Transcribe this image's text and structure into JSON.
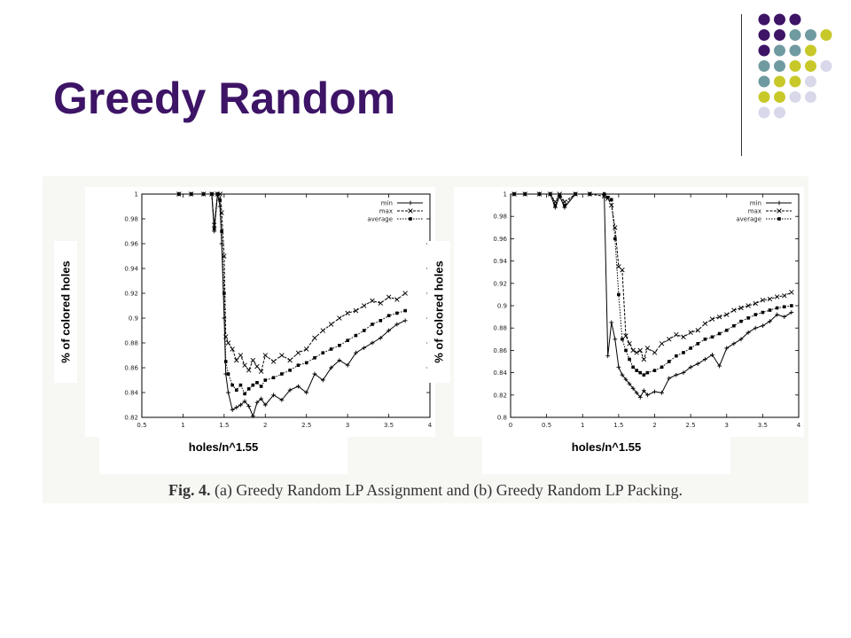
{
  "slide": {
    "title": "Greedy Random",
    "caption_label": "Fig. 4.",
    "caption_text": "(a) Greedy Random LP Assignment and (b) Greedy Random LP Packing."
  },
  "decoration": {
    "dot_colors": [
      "#3d1466",
      "#6f9aa0",
      "#c8c82a",
      "#d8d8ea"
    ],
    "dot_grid": [
      [
        0,
        0,
        0,
        -1
      ],
      [
        0,
        0,
        1,
        1,
        2
      ],
      [
        0,
        1,
        1,
        2
      ],
      [
        1,
        1,
        2,
        2,
        3
      ],
      [
        1,
        2,
        2,
        3
      ],
      [
        2,
        2,
        3,
        3
      ],
      [
        3,
        3
      ]
    ]
  },
  "chart_data": [
    {
      "type": "line",
      "id": "a",
      "ylabel": "% of colored holes",
      "xlabel": "holes/n^1.55",
      "xlim": [
        0.5,
        4
      ],
      "ylim": [
        0.82,
        1
      ],
      "xticks": [
        "0.5",
        "1",
        "1.5",
        "2",
        "2.5",
        "3",
        "3.5",
        "4"
      ],
      "yticks": [
        "0.82",
        "0.84",
        "0.86",
        "0.88",
        "0.9",
        "0.92",
        "0.94",
        "0.96",
        "0.98",
        "1"
      ],
      "legend_position": "top-right",
      "series": [
        {
          "name": "min",
          "marker": "plus",
          "x": [
            0.95,
            1.1,
            1.25,
            1.35,
            1.38,
            1.42,
            1.45,
            1.47,
            1.5,
            1.52,
            1.55,
            1.6,
            1.65,
            1.7,
            1.75,
            1.8,
            1.85,
            1.9,
            1.95,
            2.0,
            2.1,
            2.2,
            2.3,
            2.4,
            2.5,
            2.6,
            2.7,
            2.8,
            2.9,
            3.0,
            3.1,
            3.2,
            3.3,
            3.4,
            3.5,
            3.6,
            3.7
          ],
          "y": [
            1,
            1,
            1,
            1,
            0.97,
            1,
            0.99,
            0.96,
            0.9,
            0.855,
            0.84,
            0.826,
            0.828,
            0.83,
            0.833,
            0.829,
            0.821,
            0.832,
            0.835,
            0.83,
            0.838,
            0.834,
            0.842,
            0.845,
            0.84,
            0.855,
            0.85,
            0.86,
            0.866,
            0.862,
            0.872,
            0.876,
            0.88,
            0.884,
            0.89,
            0.895,
            0.898
          ]
        },
        {
          "name": "max",
          "marker": "x",
          "x": [
            0.95,
            1.1,
            1.25,
            1.35,
            1.38,
            1.42,
            1.45,
            1.47,
            1.5,
            1.52,
            1.55,
            1.6,
            1.65,
            1.7,
            1.75,
            1.8,
            1.85,
            1.9,
            1.95,
            2.0,
            2.1,
            2.2,
            2.3,
            2.4,
            2.5,
            2.6,
            2.7,
            2.8,
            2.9,
            3.0,
            3.1,
            3.2,
            3.3,
            3.4,
            3.5,
            3.6,
            3.7
          ],
          "y": [
            1,
            1,
            1,
            1,
            0.975,
            1,
            1,
            0.985,
            0.95,
            0.885,
            0.88,
            0.875,
            0.866,
            0.87,
            0.862,
            0.858,
            0.866,
            0.861,
            0.857,
            0.87,
            0.865,
            0.87,
            0.866,
            0.872,
            0.875,
            0.884,
            0.89,
            0.895,
            0.9,
            0.904,
            0.906,
            0.91,
            0.914,
            0.912,
            0.917,
            0.915,
            0.92
          ]
        },
        {
          "name": "average",
          "marker": "square",
          "x": [
            0.95,
            1.1,
            1.25,
            1.35,
            1.38,
            1.42,
            1.45,
            1.47,
            1.5,
            1.52,
            1.55,
            1.6,
            1.65,
            1.7,
            1.75,
            1.8,
            1.85,
            1.9,
            1.95,
            2.0,
            2.1,
            2.2,
            2.3,
            2.4,
            2.5,
            2.6,
            2.7,
            2.8,
            2.9,
            3.0,
            3.1,
            3.2,
            3.3,
            3.4,
            3.5,
            3.6,
            3.7
          ],
          "y": [
            1,
            1,
            1,
            1,
            0.972,
            1,
            0.995,
            0.97,
            0.92,
            0.865,
            0.855,
            0.846,
            0.842,
            0.846,
            0.839,
            0.843,
            0.846,
            0.848,
            0.845,
            0.85,
            0.852,
            0.855,
            0.858,
            0.862,
            0.864,
            0.868,
            0.872,
            0.875,
            0.878,
            0.882,
            0.886,
            0.89,
            0.895,
            0.898,
            0.902,
            0.904,
            0.906
          ]
        }
      ]
    },
    {
      "type": "line",
      "id": "b",
      "ylabel": "% of colored holes",
      "xlabel": "holes/n^1.55",
      "xlim": [
        0,
        4
      ],
      "ylim": [
        0.8,
        1
      ],
      "xticks": [
        "0",
        "0.5",
        "1",
        "1.5",
        "2",
        "2.5",
        "3",
        "3.5",
        "4"
      ],
      "yticks": [
        "0.8",
        "0.82",
        "0.84",
        "0.86",
        "0.88",
        "0.9",
        "0.92",
        "0.94",
        "0.96",
        "0.98",
        "1"
      ],
      "legend_position": "top-right",
      "series": [
        {
          "name": "min",
          "marker": "plus",
          "x": [
            0.05,
            0.2,
            0.4,
            0.55,
            0.62,
            0.68,
            0.75,
            0.9,
            1.1,
            1.3,
            1.35,
            1.4,
            1.45,
            1.5,
            1.55,
            1.6,
            1.65,
            1.7,
            1.75,
            1.8,
            1.85,
            1.9,
            2.0,
            2.1,
            2.2,
            2.3,
            2.4,
            2.5,
            2.6,
            2.7,
            2.8,
            2.9,
            3.0,
            3.1,
            3.2,
            3.3,
            3.4,
            3.5,
            3.6,
            3.7,
            3.8,
            3.9
          ],
          "y": [
            1,
            1,
            1,
            1,
            0.988,
            0.998,
            0.988,
            1,
            1,
            1,
            0.855,
            0.885,
            0.87,
            0.845,
            0.838,
            0.834,
            0.83,
            0.826,
            0.822,
            0.818,
            0.824,
            0.82,
            0.823,
            0.822,
            0.835,
            0.838,
            0.84,
            0.845,
            0.848,
            0.852,
            0.856,
            0.846,
            0.862,
            0.866,
            0.87,
            0.876,
            0.88,
            0.882,
            0.886,
            0.892,
            0.89,
            0.894
          ]
        },
        {
          "name": "max",
          "marker": "x",
          "x": [
            0.05,
            0.2,
            0.4,
            0.55,
            0.62,
            0.68,
            0.75,
            0.9,
            1.1,
            1.3,
            1.35,
            1.4,
            1.45,
            1.5,
            1.55,
            1.6,
            1.65,
            1.7,
            1.75,
            1.8,
            1.85,
            1.9,
            2.0,
            2.1,
            2.2,
            2.3,
            2.4,
            2.5,
            2.6,
            2.7,
            2.8,
            2.9,
            3.0,
            3.1,
            3.2,
            3.3,
            3.4,
            3.5,
            3.6,
            3.7,
            3.8,
            3.9
          ],
          "y": [
            1,
            1,
            1,
            1,
            0.993,
            1,
            0.993,
            1,
            1,
            0.998,
            0.996,
            0.99,
            0.97,
            0.935,
            0.932,
            0.873,
            0.866,
            0.86,
            0.858,
            0.86,
            0.852,
            0.862,
            0.858,
            0.866,
            0.87,
            0.874,
            0.872,
            0.876,
            0.878,
            0.884,
            0.888,
            0.89,
            0.892,
            0.896,
            0.898,
            0.9,
            0.902,
            0.905,
            0.906,
            0.908,
            0.909,
            0.912
          ]
        },
        {
          "name": "average",
          "marker": "square",
          "x": [
            0.05,
            0.2,
            0.4,
            0.55,
            0.62,
            0.68,
            0.75,
            0.9,
            1.1,
            1.3,
            1.35,
            1.4,
            1.45,
            1.5,
            1.55,
            1.6,
            1.65,
            1.7,
            1.75,
            1.8,
            1.85,
            1.9,
            2.0,
            2.1,
            2.2,
            2.3,
            2.4,
            2.5,
            2.6,
            2.7,
            2.8,
            2.9,
            3.0,
            3.1,
            3.2,
            3.3,
            3.4,
            3.5,
            3.6,
            3.7,
            3.8,
            3.9
          ],
          "y": [
            1,
            1,
            1,
            1,
            0.99,
            0.999,
            0.99,
            1,
            1,
            1,
            0.997,
            0.995,
            0.96,
            0.91,
            0.87,
            0.86,
            0.852,
            0.845,
            0.842,
            0.84,
            0.838,
            0.84,
            0.842,
            0.845,
            0.85,
            0.855,
            0.858,
            0.862,
            0.866,
            0.87,
            0.872,
            0.875,
            0.878,
            0.882,
            0.886,
            0.889,
            0.892,
            0.894,
            0.896,
            0.898,
            0.899,
            0.9
          ]
        }
      ]
    }
  ]
}
